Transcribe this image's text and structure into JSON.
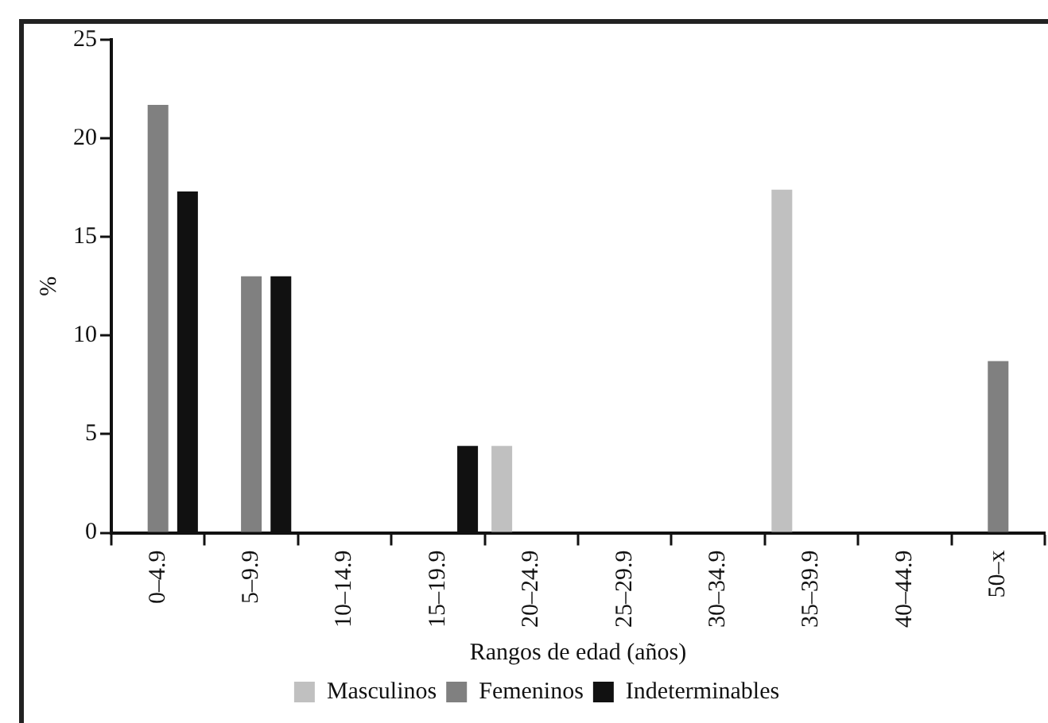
{
  "chart_data": {
    "type": "bar",
    "xlabel": "Rangos de edad (años)",
    "ylabel": "%",
    "categories": [
      "0–4.9",
      "5–9.9",
      "10–14.9",
      "15–19.9",
      "20–24.9",
      "25–29.9",
      "30–34.9",
      "35–39.9",
      "40–44.9",
      "50–x"
    ],
    "series": [
      {
        "name": "Masculinos",
        "color": "#c0c0c0",
        "values": [
          0,
          0,
          0,
          0,
          4.4,
          0,
          0,
          17.4,
          0,
          0
        ]
      },
      {
        "name": "Femeninos",
        "color": "#808080",
        "values": [
          21.7,
          13.0,
          0,
          0,
          0,
          0,
          0,
          0,
          0,
          8.7
        ]
      },
      {
        "name": "Indeterminables",
        "color": "#111111",
        "values": [
          17.3,
          13.0,
          0,
          4.4,
          0,
          0,
          0,
          0,
          0,
          0
        ]
      }
    ],
    "ylim": [
      0,
      25
    ],
    "yticks": [
      0,
      5,
      10,
      15,
      20,
      25
    ],
    "grid": false,
    "legend": "bottom"
  }
}
